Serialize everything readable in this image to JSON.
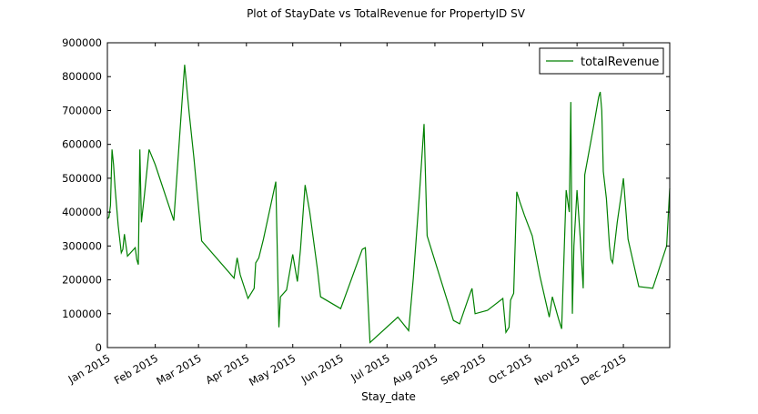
{
  "chart_data": {
    "type": "line",
    "title": "Plot of StayDate vs TotalRevenue for PropertyID SV",
    "xlabel": "Stay_date",
    "ylabel": "",
    "xlim": [
      "2015-01-01",
      "2015-12-31"
    ],
    "ylim": [
      0,
      900000
    ],
    "y_ticks": [
      0,
      100000,
      200000,
      300000,
      400000,
      500000,
      600000,
      700000,
      800000,
      900000
    ],
    "x_ticks": [
      {
        "date": "2015-01-01",
        "label": "Jan 2015"
      },
      {
        "date": "2015-02-01",
        "label": "Feb 2015"
      },
      {
        "date": "2015-03-01",
        "label": "Mar 2015"
      },
      {
        "date": "2015-04-01",
        "label": "Apr 2015"
      },
      {
        "date": "2015-05-01",
        "label": "May 2015"
      },
      {
        "date": "2015-06-01",
        "label": "Jun 2015"
      },
      {
        "date": "2015-07-01",
        "label": "Jul 2015"
      },
      {
        "date": "2015-08-01",
        "label": "Aug 2015"
      },
      {
        "date": "2015-09-01",
        "label": "Sep 2015"
      },
      {
        "date": "2015-10-01",
        "label": "Oct 2015"
      },
      {
        "date": "2015-11-01",
        "label": "Nov 2015"
      },
      {
        "date": "2015-12-01",
        "label": "Dec 2015"
      }
    ],
    "grid": false,
    "legend_position": "top-right",
    "colors": {
      "line": "#008000",
      "axes": "#000000",
      "background": "#ffffff"
    },
    "series": [
      {
        "name": "totalRevenue",
        "points": [
          [
            "2015-01-01",
            380000
          ],
          [
            "2015-01-02",
            385000
          ],
          [
            "2015-01-03",
            420000
          ],
          [
            "2015-01-04",
            585000
          ],
          [
            "2015-01-05",
            540000
          ],
          [
            "2015-01-06",
            470000
          ],
          [
            "2015-01-08",
            360000
          ],
          [
            "2015-01-10",
            280000
          ],
          [
            "2015-01-11",
            290000
          ],
          [
            "2015-01-12",
            335000
          ],
          [
            "2015-01-14",
            270000
          ],
          [
            "2015-01-19",
            295000
          ],
          [
            "2015-01-20",
            260000
          ],
          [
            "2015-01-21",
            245000
          ],
          [
            "2015-01-22",
            585000
          ],
          [
            "2015-01-23",
            370000
          ],
          [
            "2015-01-25",
            450000
          ],
          [
            "2015-01-28",
            585000
          ],
          [
            "2015-02-01",
            540000
          ],
          [
            "2015-02-13",
            375000
          ],
          [
            "2015-02-18",
            705000
          ],
          [
            "2015-02-20",
            835000
          ],
          [
            "2015-02-23",
            690000
          ],
          [
            "2015-02-26",
            560000
          ],
          [
            "2015-03-03",
            315000
          ],
          [
            "2015-03-24",
            205000
          ],
          [
            "2015-03-26",
            265000
          ],
          [
            "2015-03-28",
            215000
          ],
          [
            "2015-04-02",
            145000
          ],
          [
            "2015-04-06",
            175000
          ],
          [
            "2015-04-07",
            250000
          ],
          [
            "2015-04-09",
            265000
          ],
          [
            "2015-04-12",
            320000
          ],
          [
            "2015-04-20",
            490000
          ],
          [
            "2015-04-22",
            60000
          ],
          [
            "2015-04-23",
            150000
          ],
          [
            "2015-04-27",
            170000
          ],
          [
            "2015-05-01",
            275000
          ],
          [
            "2015-05-04",
            195000
          ],
          [
            "2015-05-06",
            290000
          ],
          [
            "2015-05-09",
            480000
          ],
          [
            "2015-05-12",
            400000
          ],
          [
            "2015-05-17",
            230000
          ],
          [
            "2015-05-19",
            150000
          ],
          [
            "2015-06-01",
            115000
          ],
          [
            "2015-06-15",
            290000
          ],
          [
            "2015-06-17",
            295000
          ],
          [
            "2015-06-20",
            15000
          ],
          [
            "2015-07-08",
            90000
          ],
          [
            "2015-07-15",
            50000
          ],
          [
            "2015-07-18",
            205000
          ],
          [
            "2015-07-22",
            455000
          ],
          [
            "2015-07-25",
            660000
          ],
          [
            "2015-07-27",
            330000
          ],
          [
            "2015-08-13",
            80000
          ],
          [
            "2015-08-17",
            70000
          ],
          [
            "2015-08-23",
            150000
          ],
          [
            "2015-08-25",
            175000
          ],
          [
            "2015-08-27",
            100000
          ],
          [
            "2015-09-04",
            110000
          ],
          [
            "2015-09-14",
            145000
          ],
          [
            "2015-09-16",
            45000
          ],
          [
            "2015-09-18",
            60000
          ],
          [
            "2015-09-19",
            140000
          ],
          [
            "2015-09-21",
            160000
          ],
          [
            "2015-09-23",
            460000
          ],
          [
            "2015-09-25",
            430000
          ],
          [
            "2015-09-28",
            390000
          ],
          [
            "2015-10-03",
            330000
          ],
          [
            "2015-10-08",
            210000
          ],
          [
            "2015-10-14",
            90000
          ],
          [
            "2015-10-16",
            150000
          ],
          [
            "2015-10-20",
            85000
          ],
          [
            "2015-10-22",
            55000
          ],
          [
            "2015-10-25",
            465000
          ],
          [
            "2015-10-27",
            400000
          ],
          [
            "2015-10-28",
            725000
          ],
          [
            "2015-10-29",
            100000
          ],
          [
            "2015-10-30",
            300000
          ],
          [
            "2015-11-01",
            465000
          ],
          [
            "2015-11-03",
            330000
          ],
          [
            "2015-11-05",
            175000
          ],
          [
            "2015-11-06",
            510000
          ],
          [
            "2015-11-08",
            560000
          ],
          [
            "2015-11-12",
            660000
          ],
          [
            "2015-11-15",
            740000
          ],
          [
            "2015-11-16",
            755000
          ],
          [
            "2015-11-17",
            700000
          ],
          [
            "2015-11-18",
            520000
          ],
          [
            "2015-11-20",
            440000
          ],
          [
            "2015-11-22",
            300000
          ],
          [
            "2015-11-23",
            260000
          ],
          [
            "2015-11-24",
            250000
          ],
          [
            "2015-11-27",
            370000
          ],
          [
            "2015-11-30",
            465000
          ],
          [
            "2015-12-01",
            500000
          ],
          [
            "2015-12-04",
            320000
          ],
          [
            "2015-12-11",
            180000
          ],
          [
            "2015-12-20",
            175000
          ],
          [
            "2015-12-29",
            300000
          ],
          [
            "2015-12-31",
            470000
          ]
        ]
      }
    ]
  }
}
